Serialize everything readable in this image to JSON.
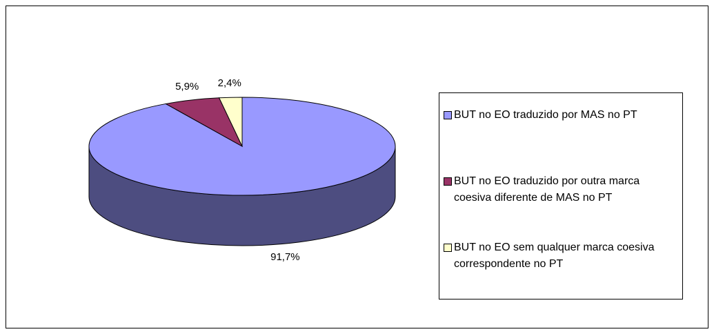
{
  "chart_data": {
    "type": "pie",
    "categories": [
      "BUT no EO traduzido por MAS no PT",
      "BUT no EO traduzido por outra marca coesiva diferente de MAS no PT",
      "BUT no EO sem qualquer marca coesiva correspondente no PT"
    ],
    "values": [
      91.7,
      5.9,
      2.4
    ],
    "value_labels": [
      "91,7%",
      "5,9%",
      "2,4%"
    ],
    "colors": [
      "#9999ff",
      "#993366",
      "#ffffcc"
    ],
    "legend": "right"
  }
}
